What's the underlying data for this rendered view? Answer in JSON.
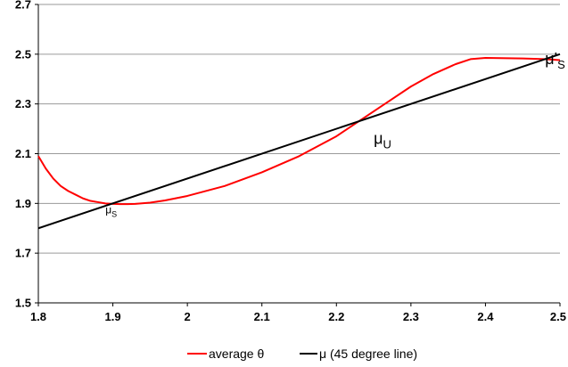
{
  "chart_data": {
    "type": "line",
    "title": "",
    "xlabel": "",
    "ylabel": "",
    "xlim": [
      1.8,
      2.5
    ],
    "ylim": [
      1.5,
      2.7
    ],
    "x_ticks": [
      "1.8",
      "1.9",
      "2",
      "2.1",
      "2.2",
      "2.3",
      "2.4",
      "2.5"
    ],
    "y_ticks": [
      "1.5",
      "1.7",
      "1.9",
      "2.1",
      "2.3",
      "2.5",
      "2.7"
    ],
    "grid": "horizontal",
    "legend_position": "bottom",
    "series": [
      {
        "name": "average θ",
        "color": "#ff0000",
        "points": [
          [
            1.8,
            2.09
          ],
          [
            1.81,
            2.04
          ],
          [
            1.82,
            2.0
          ],
          [
            1.83,
            1.97
          ],
          [
            1.84,
            1.95
          ],
          [
            1.85,
            1.935
          ],
          [
            1.86,
            1.92
          ],
          [
            1.87,
            1.91
          ],
          [
            1.88,
            1.905
          ],
          [
            1.89,
            1.9
          ],
          [
            1.9,
            1.898
          ],
          [
            1.91,
            1.897
          ],
          [
            1.92,
            1.897
          ],
          [
            1.93,
            1.898
          ],
          [
            1.95,
            1.903
          ],
          [
            1.97,
            1.912
          ],
          [
            2.0,
            1.93
          ],
          [
            2.05,
            1.97
          ],
          [
            2.1,
            2.025
          ],
          [
            2.15,
            2.09
          ],
          [
            2.2,
            2.17
          ],
          [
            2.23,
            2.23
          ],
          [
            2.26,
            2.29
          ],
          [
            2.3,
            2.37
          ],
          [
            2.33,
            2.42
          ],
          [
            2.36,
            2.46
          ],
          [
            2.38,
            2.48
          ],
          [
            2.4,
            2.485
          ],
          [
            2.42,
            2.484
          ],
          [
            2.45,
            2.483
          ],
          [
            2.48,
            2.48
          ],
          [
            2.5,
            2.476
          ]
        ]
      },
      {
        "name": "μ (45 degree line)",
        "color": "#000000",
        "points": [
          [
            1.8,
            1.8
          ],
          [
            2.5,
            2.5
          ]
        ]
      }
    ],
    "annotations": [
      {
        "text_main": "μ",
        "text_sub": "S",
        "x": 1.89,
        "y": 1.86
      },
      {
        "text_main": "μ",
        "text_sub": "U",
        "x": 2.25,
        "y": 2.14
      },
      {
        "text_main": "μ'",
        "text_sub": "S",
        "x": 2.48,
        "y": 2.46
      }
    ]
  }
}
